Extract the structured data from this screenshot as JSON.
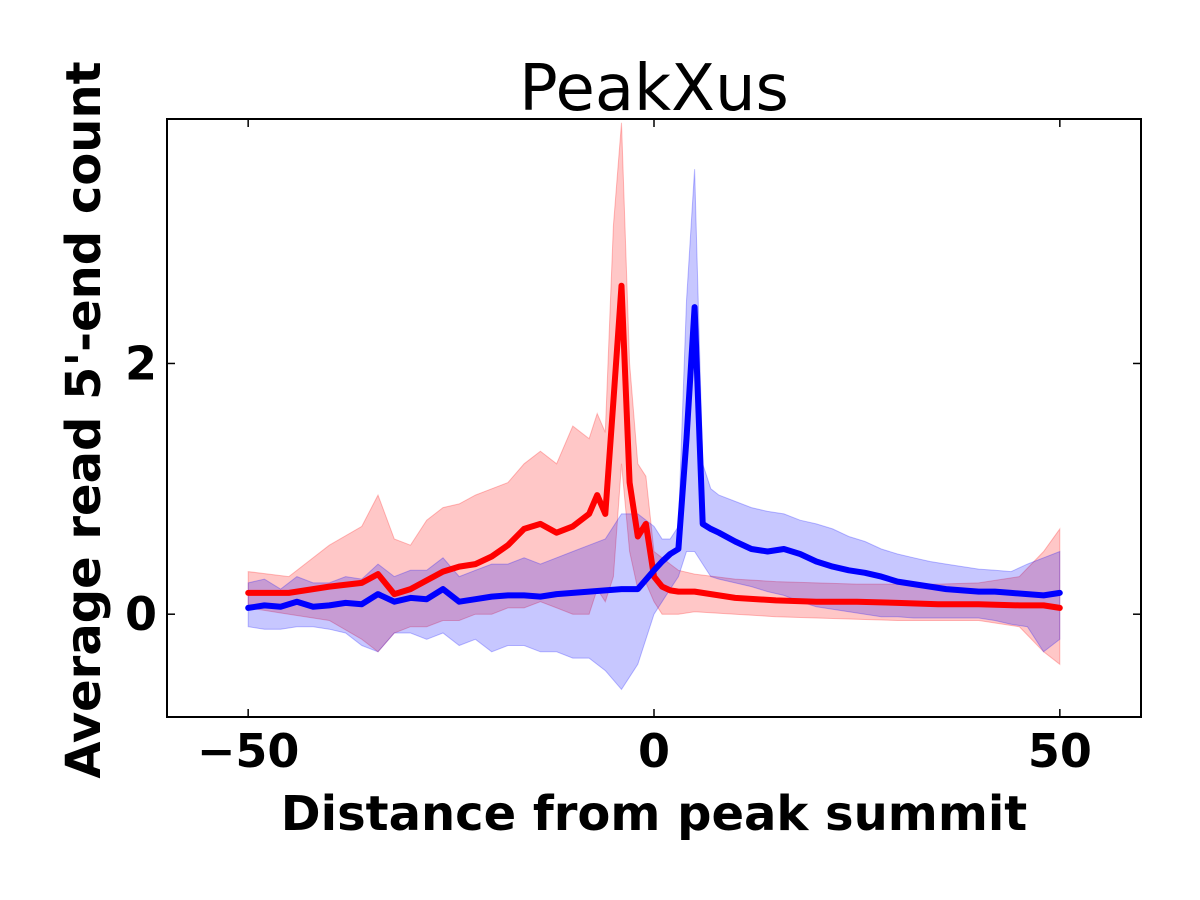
{
  "chart_data": {
    "type": "line",
    "title": "PeakXus",
    "xlabel": "Distance from peak summit",
    "ylabel": "Average read 5'-end count",
    "xlim": [
      -60,
      60
    ],
    "ylim": [
      -0.82,
      3.95
    ],
    "xticks": [
      -50,
      0,
      50
    ],
    "xtick_labels": [
      "−50",
      "0",
      "50"
    ],
    "yticks": [
      0,
      2
    ],
    "ytick_labels": [
      "0",
      "2"
    ],
    "grid": false,
    "legend": "none",
    "series": [
      {
        "color": "#ff0000",
        "band_color": "#ff0000",
        "x": [
          -50,
          -45,
          -40,
          -36,
          -34,
          -32,
          -30,
          -28,
          -26,
          -24,
          -22,
          -20,
          -18,
          -16,
          -14,
          -12,
          -10,
          -8,
          -7,
          -6,
          -5,
          -4,
          -3,
          -2,
          -1,
          0,
          1,
          2,
          3,
          5,
          10,
          15,
          20,
          25,
          30,
          35,
          40,
          45,
          48,
          50
        ],
        "values": [
          0.17,
          0.17,
          0.22,
          0.25,
          0.32,
          0.16,
          0.2,
          0.27,
          0.34,
          0.38,
          0.4,
          0.46,
          0.55,
          0.68,
          0.72,
          0.65,
          0.7,
          0.8,
          0.95,
          0.8,
          1.7,
          2.62,
          1.05,
          0.62,
          0.72,
          0.3,
          0.22,
          0.19,
          0.18,
          0.18,
          0.13,
          0.11,
          0.1,
          0.1,
          0.09,
          0.08,
          0.08,
          0.07,
          0.07,
          0.05
        ],
        "upper": [
          0.34,
          0.3,
          0.55,
          0.7,
          0.95,
          0.6,
          0.55,
          0.75,
          0.85,
          0.88,
          0.95,
          1.0,
          1.05,
          1.2,
          1.3,
          1.2,
          1.5,
          1.4,
          1.6,
          1.45,
          3.1,
          3.92,
          2.0,
          1.2,
          1.1,
          0.5,
          0.45,
          0.4,
          0.35,
          0.32,
          0.28,
          0.26,
          0.25,
          0.24,
          0.24,
          0.24,
          0.25,
          0.3,
          0.5,
          0.68
        ],
        "lower": [
          0.05,
          0.0,
          -0.05,
          -0.2,
          -0.3,
          -0.15,
          -0.1,
          -0.1,
          -0.05,
          -0.05,
          0.0,
          0.0,
          0.05,
          0.05,
          0.1,
          0.05,
          0.0,
          0.0,
          0.2,
          0.1,
          0.3,
          1.2,
          0.5,
          0.2,
          0.25,
          0.1,
          0.0,
          0.0,
          0.0,
          0.02,
          0.0,
          -0.02,
          -0.03,
          -0.04,
          -0.05,
          -0.05,
          -0.05,
          -0.1,
          -0.3,
          -0.4
        ]
      },
      {
        "color": "#0000ff",
        "band_color": "#0000ff",
        "x": [
          -50,
          -48,
          -46,
          -44,
          -42,
          -40,
          -38,
          -36,
          -34,
          -32,
          -30,
          -28,
          -26,
          -24,
          -22,
          -20,
          -18,
          -16,
          -14,
          -12,
          -10,
          -8,
          -6,
          -4,
          -2,
          0,
          1,
          2,
          3,
          4,
          5,
          6,
          7,
          8,
          10,
          12,
          14,
          16,
          18,
          20,
          22,
          24,
          26,
          28,
          30,
          32,
          34,
          36,
          38,
          40,
          42,
          44,
          46,
          48,
          50
        ],
        "values": [
          0.05,
          0.07,
          0.06,
          0.1,
          0.06,
          0.07,
          0.09,
          0.08,
          0.16,
          0.1,
          0.13,
          0.12,
          0.2,
          0.1,
          0.12,
          0.14,
          0.15,
          0.15,
          0.14,
          0.16,
          0.17,
          0.18,
          0.19,
          0.2,
          0.2,
          0.35,
          0.42,
          0.48,
          0.52,
          1.4,
          2.45,
          0.72,
          0.68,
          0.65,
          0.58,
          0.52,
          0.5,
          0.52,
          0.48,
          0.42,
          0.38,
          0.35,
          0.33,
          0.3,
          0.26,
          0.24,
          0.22,
          0.2,
          0.19,
          0.18,
          0.18,
          0.17,
          0.16,
          0.15,
          0.17
        ],
        "upper": [
          0.25,
          0.28,
          0.2,
          0.3,
          0.25,
          0.25,
          0.3,
          0.28,
          0.4,
          0.3,
          0.35,
          0.35,
          0.45,
          0.3,
          0.35,
          0.4,
          0.4,
          0.45,
          0.4,
          0.45,
          0.5,
          0.55,
          0.6,
          0.8,
          0.8,
          0.7,
          0.6,
          0.6,
          0.7,
          2.5,
          3.55,
          1.2,
          1.0,
          0.95,
          0.9,
          0.85,
          0.82,
          0.8,
          0.75,
          0.72,
          0.68,
          0.62,
          0.58,
          0.52,
          0.48,
          0.45,
          0.42,
          0.4,
          0.38,
          0.36,
          0.35,
          0.34,
          0.4,
          0.45,
          0.5
        ],
        "lower": [
          -0.1,
          -0.12,
          -0.12,
          -0.1,
          -0.1,
          -0.12,
          -0.15,
          -0.25,
          -0.3,
          -0.15,
          -0.15,
          -0.2,
          -0.15,
          -0.25,
          -0.2,
          -0.3,
          -0.25,
          -0.25,
          -0.3,
          -0.3,
          -0.35,
          -0.35,
          -0.45,
          -0.6,
          -0.4,
          0.0,
          0.1,
          0.2,
          0.3,
          0.5,
          0.5,
          0.4,
          0.3,
          0.28,
          0.25,
          0.22,
          0.18,
          0.15,
          0.1,
          0.06,
          0.04,
          0.02,
          0.0,
          -0.02,
          -0.02,
          -0.03,
          -0.03,
          -0.03,
          -0.03,
          -0.03,
          -0.05,
          -0.08,
          -0.1,
          -0.3,
          -0.2
        ]
      }
    ]
  }
}
